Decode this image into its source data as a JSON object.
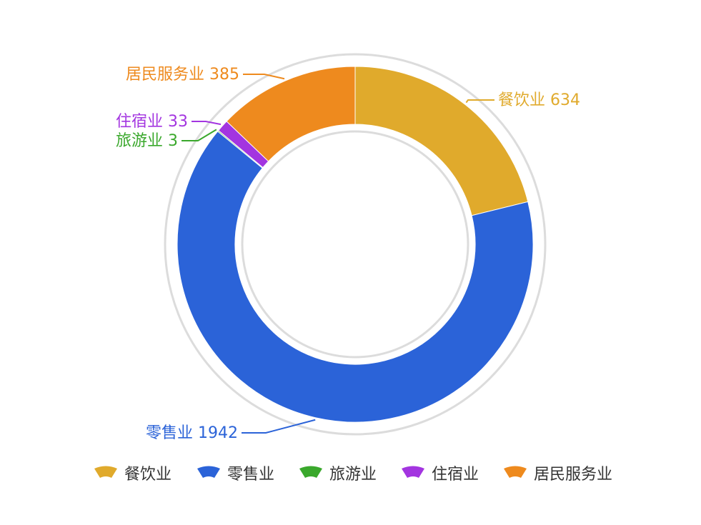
{
  "chart_data": {
    "type": "pie",
    "variant": "donut",
    "title": "",
    "legend_position": "bottom",
    "series": [
      {
        "name": "餐饮业",
        "value": 634,
        "color": "#e0aa2c"
      },
      {
        "name": "零售业",
        "value": 1942,
        "color": "#2b63d8"
      },
      {
        "name": "旅游业",
        "value": 3,
        "color": "#3aa82c"
      },
      {
        "name": "住宿业",
        "value": 33,
        "color": "#a335e0"
      },
      {
        "name": "居民服务业",
        "value": 385,
        "color": "#ee8a1e"
      }
    ]
  }
}
